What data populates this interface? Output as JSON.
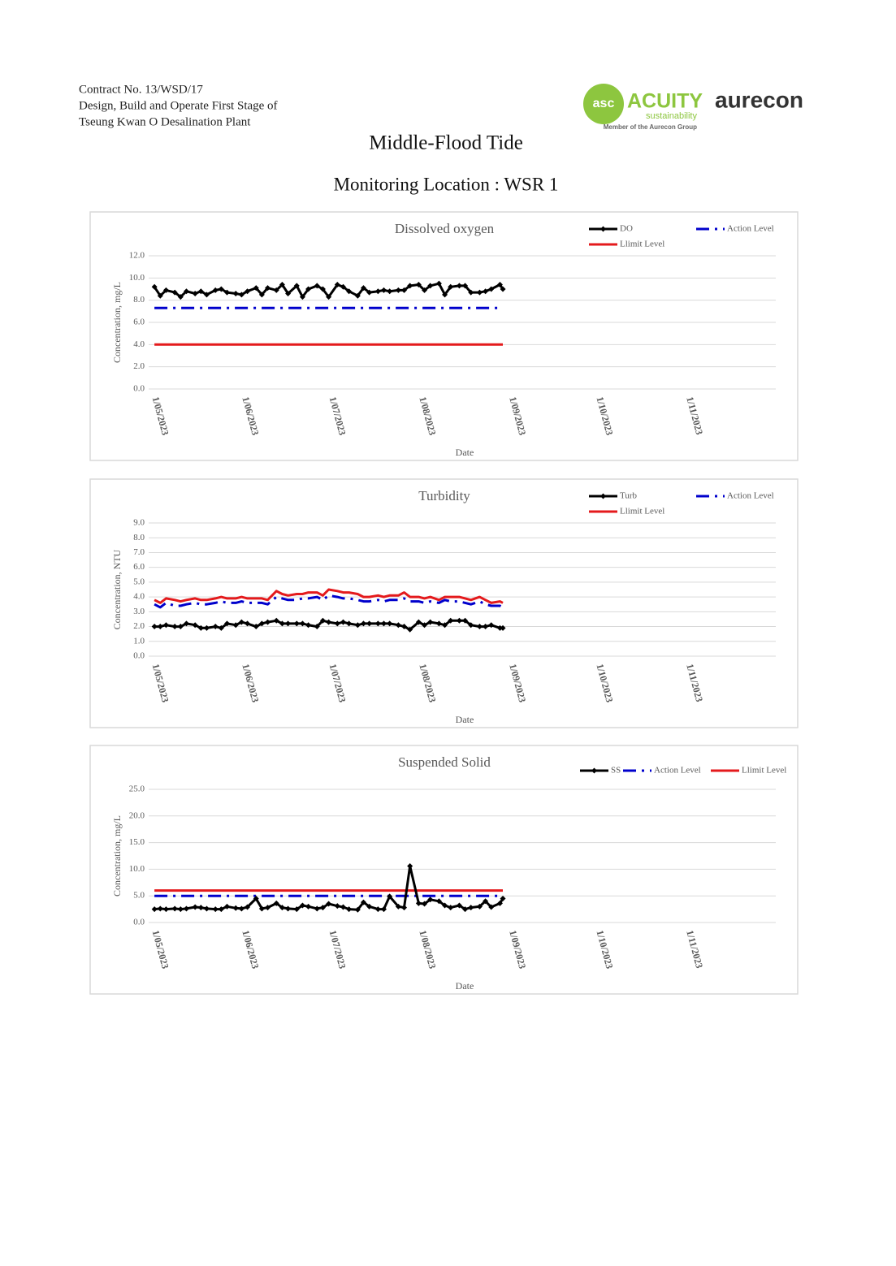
{
  "header": {
    "contract": [
      "Contract No. 13/WSD/17",
      "Design, Build and Operate First Stage of",
      "Tseung Kwan O Desalination Plant"
    ],
    "logo_mark": "asc",
    "logo_name": "ACUITY",
    "logo_tag": "sustainability",
    "logo_member": "Member of the Aurecon Group",
    "logo_aurecon": "aurecon"
  },
  "title": "Middle-Flood Tide",
  "subtitle": "Monitoring Location : WSR 1",
  "chart_data": [
    {
      "type": "line",
      "title": "Dissolved oxygen",
      "xlabel": "Date",
      "ylabel": "Concentration, mg/L",
      "legend": "top-right",
      "grid": true,
      "x": [
        "2023-05-01",
        "2023-05-03",
        "2023-05-05",
        "2023-05-08",
        "2023-05-10",
        "2023-05-12",
        "2023-05-15",
        "2023-05-17",
        "2023-05-19",
        "2023-05-22",
        "2023-05-24",
        "2023-05-26",
        "2023-05-29",
        "2023-05-31",
        "2023-06-02",
        "2023-06-05",
        "2023-06-07",
        "2023-06-09",
        "2023-06-12",
        "2023-06-14",
        "2023-06-16",
        "2023-06-19",
        "2023-06-21",
        "2023-06-23",
        "2023-06-26",
        "2023-06-28",
        "2023-06-30",
        "2023-07-03",
        "2023-07-05",
        "2023-07-07",
        "2023-07-10",
        "2023-07-12",
        "2023-07-14",
        "2023-07-17",
        "2023-07-19",
        "2023-07-21",
        "2023-07-24",
        "2023-07-26",
        "2023-07-28",
        "2023-07-31",
        "2023-08-02",
        "2023-08-04",
        "2023-08-07",
        "2023-08-09",
        "2023-08-11",
        "2023-08-14",
        "2023-08-16",
        "2023-08-18",
        "2023-08-21",
        "2023-08-23",
        "2023-08-25",
        "2023-08-28",
        "2023-08-29"
      ],
      "series": [
        {
          "name": "DO",
          "color": "#000000",
          "style": "solid",
          "marker": "diamond",
          "values": [
            9.2,
            8.4,
            8.9,
            8.7,
            8.3,
            8.8,
            8.6,
            8.8,
            8.5,
            8.9,
            9.0,
            8.7,
            8.6,
            8.5,
            8.8,
            9.1,
            8.5,
            9.1,
            8.9,
            9.4,
            8.6,
            9.3,
            8.3,
            9.0,
            9.3,
            9.0,
            8.3,
            9.4,
            9.2,
            8.8,
            8.4,
            9.1,
            8.7,
            8.8,
            8.9,
            8.8,
            8.9,
            8.9,
            9.3,
            9.4,
            8.9,
            9.3,
            9.5,
            8.5,
            9.2,
            9.3,
            9.3,
            8.7,
            8.7,
            8.8,
            9.0,
            9.4,
            9.0
          ]
        },
        {
          "name": "Action Level",
          "color": "#0000cc",
          "style": "dashdot",
          "values": [
            7.3,
            7.3,
            7.3,
            7.3,
            7.3,
            7.3,
            7.3,
            7.3,
            7.3,
            7.3,
            7.3,
            7.3,
            7.3,
            7.3,
            7.3,
            7.3,
            7.3,
            7.3,
            7.3,
            7.3,
            7.3,
            7.3,
            7.3,
            7.3,
            7.3,
            7.3,
            7.3,
            7.3,
            7.3,
            7.3,
            7.3,
            7.3,
            7.3,
            7.3,
            7.3,
            7.3,
            7.3,
            7.3,
            7.3,
            7.3,
            7.3,
            7.3,
            7.3,
            7.3,
            7.3,
            7.3,
            7.3,
            7.3,
            7.3,
            7.3,
            7.3,
            7.3,
            7.3
          ]
        },
        {
          "name": "Llimit Level",
          "color": "#e41a1c",
          "style": "solid",
          "values": [
            4.0,
            4.0,
            4.0,
            4.0,
            4.0,
            4.0,
            4.0,
            4.0,
            4.0,
            4.0,
            4.0,
            4.0,
            4.0,
            4.0,
            4.0,
            4.0,
            4.0,
            4.0,
            4.0,
            4.0,
            4.0,
            4.0,
            4.0,
            4.0,
            4.0,
            4.0,
            4.0,
            4.0,
            4.0,
            4.0,
            4.0,
            4.0,
            4.0,
            4.0,
            4.0,
            4.0,
            4.0,
            4.0,
            4.0,
            4.0,
            4.0,
            4.0,
            4.0,
            4.0,
            4.0,
            4.0,
            4.0,
            4.0,
            4.0,
            4.0,
            4.0,
            4.0,
            4.0
          ]
        }
      ],
      "xlim": [
        "2023-04-29",
        "2023-12-01"
      ],
      "xticks": [
        {
          "value": "2023-05-01",
          "label": "1/05/2023"
        },
        {
          "value": "2023-06-01",
          "label": "1/06/2023"
        },
        {
          "value": "2023-07-01",
          "label": "1/07/2023"
        },
        {
          "value": "2023-08-01",
          "label": "1/08/2023"
        },
        {
          "value": "2023-09-01",
          "label": "1/09/2023"
        },
        {
          "value": "2023-10-01",
          "label": "1/10/2023"
        },
        {
          "value": "2023-11-01",
          "label": "1/11/2023"
        }
      ],
      "ylim": [
        0,
        12
      ],
      "yticks": [
        {
          "value": 0,
          "label": "0.0"
        },
        {
          "value": 2,
          "label": "2.0"
        },
        {
          "value": 4,
          "label": "4.0"
        },
        {
          "value": 6,
          "label": "6.0"
        },
        {
          "value": 8,
          "label": "8.0"
        },
        {
          "value": 10,
          "label": "10.0"
        },
        {
          "value": 12,
          "label": "12.0"
        }
      ]
    },
    {
      "type": "line",
      "title": "Turbidity",
      "xlabel": "Date",
      "ylabel": "Concentration, NTU",
      "legend": "top-right",
      "grid": true,
      "x": [
        "2023-05-01",
        "2023-05-03",
        "2023-05-05",
        "2023-05-08",
        "2023-05-10",
        "2023-05-12",
        "2023-05-15",
        "2023-05-17",
        "2023-05-19",
        "2023-05-22",
        "2023-05-24",
        "2023-05-26",
        "2023-05-29",
        "2023-05-31",
        "2023-06-02",
        "2023-06-05",
        "2023-06-07",
        "2023-06-09",
        "2023-06-12",
        "2023-06-14",
        "2023-06-16",
        "2023-06-19",
        "2023-06-21",
        "2023-06-23",
        "2023-06-26",
        "2023-06-28",
        "2023-06-30",
        "2023-07-03",
        "2023-07-05",
        "2023-07-07",
        "2023-07-10",
        "2023-07-12",
        "2023-07-14",
        "2023-07-17",
        "2023-07-19",
        "2023-07-21",
        "2023-07-24",
        "2023-07-26",
        "2023-07-28",
        "2023-07-31",
        "2023-08-02",
        "2023-08-04",
        "2023-08-07",
        "2023-08-09",
        "2023-08-11",
        "2023-08-14",
        "2023-08-16",
        "2023-08-18",
        "2023-08-21",
        "2023-08-23",
        "2023-08-25",
        "2023-08-28",
        "2023-08-29"
      ],
      "series": [
        {
          "name": "Turb",
          "color": "#000000",
          "style": "solid",
          "marker": "diamond",
          "values": [
            2.0,
            2.0,
            2.1,
            2.0,
            2.0,
            2.2,
            2.1,
            1.9,
            1.9,
            2.0,
            1.9,
            2.2,
            2.1,
            2.3,
            2.2,
            2.0,
            2.2,
            2.3,
            2.4,
            2.2,
            2.2,
            2.2,
            2.2,
            2.1,
            2.0,
            2.4,
            2.3,
            2.2,
            2.3,
            2.2,
            2.1,
            2.2,
            2.2,
            2.2,
            2.2,
            2.2,
            2.1,
            2.0,
            1.8,
            2.3,
            2.1,
            2.3,
            2.2,
            2.1,
            2.4,
            2.4,
            2.4,
            2.1,
            2.0,
            2.0,
            2.1,
            1.9,
            1.9
          ]
        },
        {
          "name": "Action Level",
          "color": "#0000cc",
          "style": "dashdot",
          "values": [
            3.5,
            3.3,
            3.6,
            3.4,
            3.4,
            3.5,
            3.6,
            3.5,
            3.5,
            3.6,
            3.7,
            3.6,
            3.6,
            3.7,
            3.6,
            3.6,
            3.6,
            3.5,
            4.0,
            3.9,
            3.8,
            3.8,
            3.9,
            3.9,
            4.0,
            3.8,
            4.1,
            4.0,
            3.9,
            3.9,
            3.8,
            3.7,
            3.7,
            3.8,
            3.7,
            3.8,
            3.8,
            3.9,
            3.7,
            3.7,
            3.6,
            3.7,
            3.6,
            3.8,
            3.7,
            3.7,
            3.6,
            3.5,
            3.7,
            3.5,
            3.4,
            3.4,
            3.3
          ]
        },
        {
          "name": "Llimit Level",
          "color": "#e41a1c",
          "style": "solid",
          "values": [
            3.8,
            3.6,
            3.9,
            3.8,
            3.7,
            3.8,
            3.9,
            3.8,
            3.8,
            3.9,
            4.0,
            3.9,
            3.9,
            4.0,
            3.9,
            3.9,
            3.9,
            3.8,
            4.4,
            4.2,
            4.1,
            4.2,
            4.2,
            4.3,
            4.3,
            4.1,
            4.5,
            4.4,
            4.3,
            4.3,
            4.2,
            4.0,
            4.0,
            4.1,
            4.0,
            4.1,
            4.1,
            4.3,
            4.0,
            4.0,
            3.9,
            4.0,
            3.8,
            4.0,
            4.0,
            4.0,
            3.9,
            3.8,
            4.0,
            3.8,
            3.6,
            3.7,
            3.6
          ]
        }
      ],
      "xlim": [
        "2023-04-29",
        "2023-12-01"
      ],
      "xticks": [
        {
          "value": "2023-05-01",
          "label": "1/05/2023"
        },
        {
          "value": "2023-06-01",
          "label": "1/06/2023"
        },
        {
          "value": "2023-07-01",
          "label": "1/07/2023"
        },
        {
          "value": "2023-08-01",
          "label": "1/08/2023"
        },
        {
          "value": "2023-09-01",
          "label": "1/09/2023"
        },
        {
          "value": "2023-10-01",
          "label": "1/10/2023"
        },
        {
          "value": "2023-11-01",
          "label": "1/11/2023"
        }
      ],
      "ylim": [
        0,
        9
      ],
      "yticks": [
        {
          "value": 0,
          "label": "0.0"
        },
        {
          "value": 1,
          "label": "1.0"
        },
        {
          "value": 2,
          "label": "2.0"
        },
        {
          "value": 3,
          "label": "3.0"
        },
        {
          "value": 4,
          "label": "4.0"
        },
        {
          "value": 5,
          "label": "5.0"
        },
        {
          "value": 6,
          "label": "6.0"
        },
        {
          "value": 7,
          "label": "7.0"
        },
        {
          "value": 8,
          "label": "8.0"
        },
        {
          "value": 9,
          "label": "9.0"
        }
      ]
    },
    {
      "type": "line",
      "title": "Suspended Solid",
      "xlabel": "Date",
      "ylabel": "Concentration, mg/L",
      "legend": "top-right",
      "grid": true,
      "x": [
        "2023-05-01",
        "2023-05-03",
        "2023-05-05",
        "2023-05-08",
        "2023-05-10",
        "2023-05-12",
        "2023-05-15",
        "2023-05-17",
        "2023-05-19",
        "2023-05-22",
        "2023-05-24",
        "2023-05-26",
        "2023-05-29",
        "2023-05-31",
        "2023-06-02",
        "2023-06-05",
        "2023-06-07",
        "2023-06-09",
        "2023-06-12",
        "2023-06-14",
        "2023-06-16",
        "2023-06-19",
        "2023-06-21",
        "2023-06-23",
        "2023-06-26",
        "2023-06-28",
        "2023-06-30",
        "2023-07-03",
        "2023-07-05",
        "2023-07-07",
        "2023-07-10",
        "2023-07-12",
        "2023-07-14",
        "2023-07-17",
        "2023-07-19",
        "2023-07-21",
        "2023-07-24",
        "2023-07-26",
        "2023-07-28",
        "2023-07-31",
        "2023-08-02",
        "2023-08-04",
        "2023-08-07",
        "2023-08-09",
        "2023-08-11",
        "2023-08-14",
        "2023-08-16",
        "2023-08-18",
        "2023-08-21",
        "2023-08-23",
        "2023-08-25",
        "2023-08-28",
        "2023-08-29"
      ],
      "series": [
        {
          "name": "SS",
          "color": "#000000",
          "style": "solid",
          "marker": "diamond",
          "values": [
            2.5,
            2.6,
            2.5,
            2.6,
            2.5,
            2.6,
            2.9,
            2.8,
            2.6,
            2.5,
            2.5,
            3.0,
            2.7,
            2.6,
            2.9,
            4.5,
            2.6,
            2.8,
            3.6,
            2.8,
            2.6,
            2.5,
            3.2,
            3.0,
            2.6,
            2.8,
            3.5,
            3.1,
            2.9,
            2.5,
            2.4,
            3.8,
            3.0,
            2.5,
            2.5,
            4.9,
            3.0,
            2.8,
            10.6,
            3.6,
            3.5,
            4.3,
            4.0,
            3.2,
            2.8,
            3.2,
            2.5,
            2.8,
            3.0,
            4.0,
            2.9,
            3.6,
            4.5
          ]
        },
        {
          "name": "Action Level",
          "color": "#0000cc",
          "style": "dashdot",
          "values": [
            5.0,
            5.0,
            5.0,
            5.0,
            5.0,
            5.0,
            5.0,
            5.0,
            5.0,
            5.0,
            5.0,
            5.0,
            5.0,
            5.0,
            5.0,
            5.0,
            5.0,
            5.0,
            5.0,
            5.0,
            5.0,
            5.0,
            5.0,
            5.0,
            5.0,
            5.0,
            5.0,
            5.0,
            5.0,
            5.0,
            5.0,
            5.0,
            5.0,
            5.0,
            5.0,
            5.0,
            5.0,
            5.0,
            5.0,
            5.0,
            5.0,
            5.0,
            5.0,
            5.0,
            5.0,
            5.0,
            5.0,
            5.0,
            5.0,
            5.0,
            5.0,
            5.0,
            5.0
          ]
        },
        {
          "name": "Llimit Level",
          "color": "#e41a1c",
          "style": "solid",
          "values": [
            6.0,
            6.0,
            6.0,
            6.0,
            6.0,
            6.0,
            6.0,
            6.0,
            6.0,
            6.0,
            6.0,
            6.0,
            6.0,
            6.0,
            6.0,
            6.0,
            6.0,
            6.0,
            6.0,
            6.0,
            6.0,
            6.0,
            6.0,
            6.0,
            6.0,
            6.0,
            6.0,
            6.0,
            6.0,
            6.0,
            6.0,
            6.0,
            6.0,
            6.0,
            6.0,
            6.0,
            6.0,
            6.0,
            6.0,
            6.0,
            6.0,
            6.0,
            6.0,
            6.0,
            6.0,
            6.0,
            6.0,
            6.0,
            6.0,
            6.0,
            6.0,
            6.0,
            6.0
          ]
        }
      ],
      "xlim": [
        "2023-04-29",
        "2023-12-01"
      ],
      "xticks": [
        {
          "value": "2023-05-01",
          "label": "1/05/2023"
        },
        {
          "value": "2023-06-01",
          "label": "1/06/2023"
        },
        {
          "value": "2023-07-01",
          "label": "1/07/2023"
        },
        {
          "value": "2023-08-01",
          "label": "1/08/2023"
        },
        {
          "value": "2023-09-01",
          "label": "1/09/2023"
        },
        {
          "value": "2023-10-01",
          "label": "1/10/2023"
        },
        {
          "value": "2023-11-01",
          "label": "1/11/2023"
        }
      ],
      "ylim": [
        0,
        25
      ],
      "yticks": [
        {
          "value": 0,
          "label": "0.0"
        },
        {
          "value": 5,
          "label": "5.0"
        },
        {
          "value": 10,
          "label": "10.0"
        },
        {
          "value": 15,
          "label": "15.0"
        },
        {
          "value": 20,
          "label": "20.0"
        },
        {
          "value": 25,
          "label": "25.0"
        }
      ]
    }
  ]
}
